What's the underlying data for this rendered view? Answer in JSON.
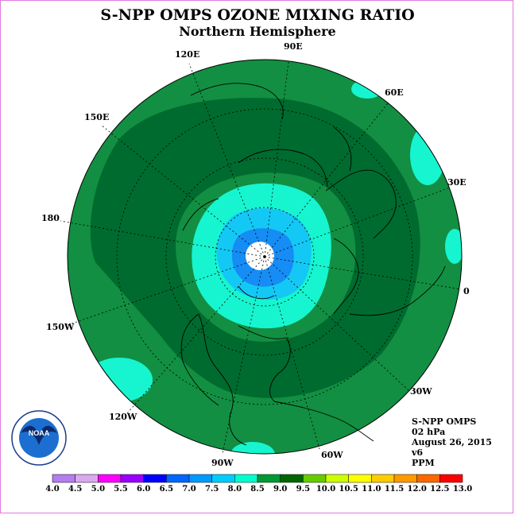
{
  "title": "S-NPP OMPS OZONE MIXING RATIO",
  "subtitle": "Northern Hemisphere",
  "longitude_labels": [
    "90E",
    "60E",
    "30E",
    "0",
    "30W",
    "60W",
    "90W",
    "120W",
    "150W",
    "180",
    "150E",
    "120E"
  ],
  "info": {
    "instrument": "S-NPP OMPS",
    "level": "02 hPa",
    "date": "August 26, 2015",
    "version": "v6",
    "units": "PPM"
  },
  "logo": {
    "text": "NOAA",
    "ring_text": "NATIONAL OCEANIC AND ATMOSPHERIC ADMINISTRATION · U.S. DEPARTMENT OF COMMERCE"
  },
  "colorbar": {
    "ticks": [
      "4.0",
      "4.5",
      "5.0",
      "5.5",
      "6.0",
      "6.5",
      "7.0",
      "7.5",
      "8.0",
      "8.5",
      "9.0",
      "9.5",
      "10.0",
      "10.5",
      "11.0",
      "11.5",
      "12.0",
      "12.5",
      "13.0"
    ],
    "colors": [
      "#b57cf0",
      "#d9a9f0",
      "#ff00ff",
      "#9900ff",
      "#0000ff",
      "#0066ff",
      "#0099ff",
      "#00ccff",
      "#00ffcc",
      "#009933",
      "#006600",
      "#66cc00",
      "#ccff00",
      "#ffff00",
      "#ffcc00",
      "#ff9900",
      "#ff6600",
      "#ff0000",
      "#993300"
    ]
  },
  "map_colors": {
    "base": "#128f42",
    "dark": "#006b2e",
    "cyan": "#16f5cf",
    "blue": "#14c8f5",
    "mid_blue": "#168cf5",
    "pole_hole": "#ffffff"
  }
}
